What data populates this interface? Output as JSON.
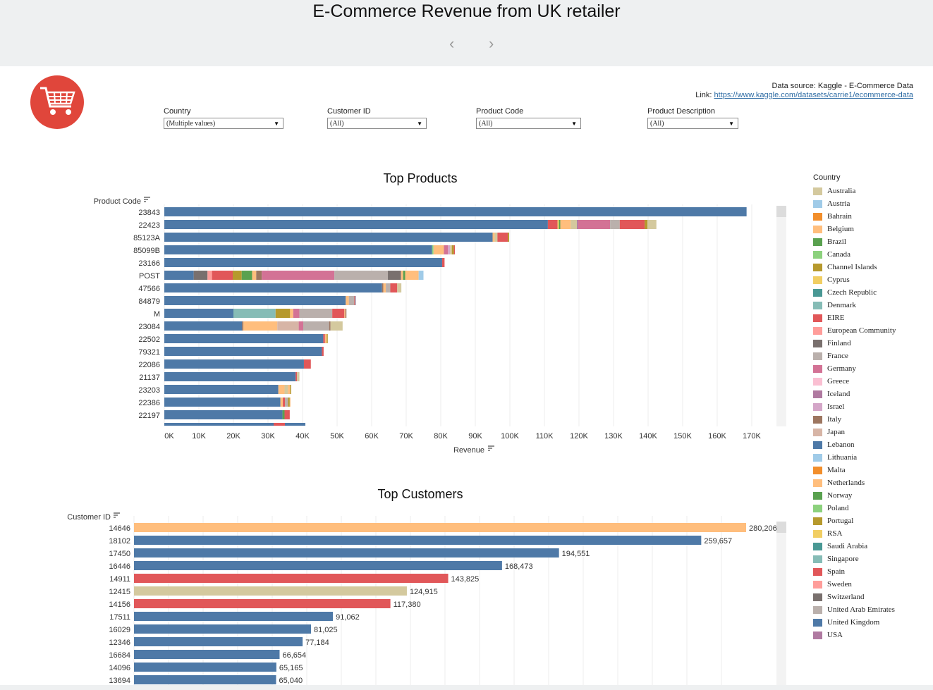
{
  "header": {
    "title": "E-Commerce Revenue from UK retailer",
    "prev_glyph": "‹",
    "next_glyph": "›"
  },
  "source": {
    "line1": "Data source: Kaggle - E-Commerce Data",
    "link_label": "Link: ",
    "link_text": "https://www.kaggle.com/datasets/carrie1/ecommerce-data"
  },
  "filters": [
    {
      "label": "Country",
      "value": "(Multiple values)"
    },
    {
      "label": "Customer ID",
      "value": "(All)"
    },
    {
      "label": "Product Code",
      "value": "(All)"
    },
    {
      "label": "Product Description",
      "value": "(All)"
    }
  ],
  "colors": {
    "Australia": "#d4c99e",
    "Austria": "#a0cbe8",
    "Bahrain": "#f28e2b",
    "Belgium": "#ffbe7d",
    "Brazil": "#59a14f",
    "Canada": "#8cd17d",
    "Channel Islands": "#b6992d",
    "Cyprus": "#f1ce63",
    "Czech Republic": "#499894",
    "Denmark": "#86bcb6",
    "EIRE": "#e15759",
    "European Community": "#ff9d9a",
    "Finland": "#79706e",
    "France": "#bab0ac",
    "Germany": "#d37295",
    "Greece": "#fabfd2",
    "Iceland": "#b07aa1",
    "Israel": "#d4a6c8",
    "Italy": "#9d7660",
    "Japan": "#d7b5a6",
    "Lebanon": "#4e79a7",
    "Lithuania": "#a0cbe8",
    "Malta": "#f28e2b",
    "Netherlands": "#ffbe7d",
    "Norway": "#59a14f",
    "Poland": "#8cd17d",
    "Portugal": "#b6992d",
    "RSA": "#f1ce63",
    "Saudi Arabia": "#499894",
    "Singapore": "#86bcb6",
    "Spain": "#e15759",
    "Sweden": "#ff9d9a",
    "Switzerland": "#79706e",
    "United Arab Emirates": "#bab0ac",
    "United Kingdom": "#4e79a7",
    "USA": "#b07aa1"
  },
  "legend": {
    "title": "Country",
    "items": [
      "Australia",
      "Austria",
      "Bahrain",
      "Belgium",
      "Brazil",
      "Canada",
      "Channel Islands",
      "Cyprus",
      "Czech Republic",
      "Denmark",
      "EIRE",
      "European Community",
      "Finland",
      "France",
      "Germany",
      "Greece",
      "Iceland",
      "Israel",
      "Italy",
      "Japan",
      "Lebanon",
      "Lithuania",
      "Malta",
      "Netherlands",
      "Norway",
      "Poland",
      "Portugal",
      "RSA",
      "Saudi Arabia",
      "Singapore",
      "Spain",
      "Sweden",
      "Switzerland",
      "United Arab Emirates",
      "United Kingdom",
      "USA"
    ]
  },
  "chart_data": [
    {
      "type": "bar",
      "orientation": "horizontal",
      "stacked": true,
      "title": "Top Products",
      "ylabel": "Product Code",
      "xlabel": "Revenue",
      "xlim": [
        0,
        170000
      ],
      "xticks": [
        "0K",
        "10K",
        "20K",
        "30K",
        "40K",
        "50K",
        "60K",
        "70K",
        "80K",
        "90K",
        "100K",
        "110K",
        "120K",
        "130K",
        "140K",
        "150K",
        "160K",
        "170K"
      ],
      "categories": [
        "23843",
        "22423",
        "85123A",
        "85099B",
        "23166",
        "POST",
        "47566",
        "84879",
        "M",
        "23084",
        "22502",
        "79321",
        "22086",
        "21137",
        "23203",
        "22386",
        "22197"
      ],
      "stacks": [
        [
          [
            "United Kingdom",
            168500
          ]
        ],
        [
          [
            "United Kingdom",
            111000
          ],
          [
            "Spain",
            2800
          ],
          [
            "Cyprus",
            400
          ],
          [
            "Brazil",
            400
          ],
          [
            "Netherlands",
            3000
          ],
          [
            "Australia",
            1800
          ],
          [
            "Iceland",
            400
          ],
          [
            "Germany",
            9200
          ],
          [
            "France",
            2800
          ],
          [
            "EIRE",
            7200
          ],
          [
            "Portugal",
            800
          ],
          [
            "Australia",
            2600
          ]
        ],
        [
          [
            "United Kingdom",
            95000
          ],
          [
            "Netherlands",
            600
          ],
          [
            "Australia",
            800
          ],
          [
            "EIRE",
            3000
          ],
          [
            "Portugal",
            400
          ]
        ],
        [
          [
            "United Kingdom",
            77500
          ],
          [
            "Canada",
            400
          ],
          [
            "Netherlands",
            3000
          ],
          [
            "Germany",
            1200
          ],
          [
            "Israel",
            600
          ],
          [
            "Australia",
            500
          ],
          [
            "Channel Islands",
            600
          ],
          [
            "Spain",
            300
          ]
        ],
        [
          [
            "United Kingdom",
            80400
          ],
          [
            "EIRE",
            700
          ]
        ],
        [
          [
            "United Kingdom",
            8500
          ],
          [
            "Switzerland",
            4000
          ],
          [
            "European Community",
            1300
          ],
          [
            "EIRE",
            6000
          ],
          [
            "Channel Islands",
            2600
          ],
          [
            "Brazil",
            3000
          ],
          [
            "Belgium",
            1200
          ],
          [
            "Italy",
            1600
          ],
          [
            "Germany",
            21000
          ],
          [
            "France",
            15500
          ],
          [
            "Switzerland",
            3800
          ],
          [
            "Netherlands",
            600
          ],
          [
            "Norway",
            600
          ],
          [
            "Netherlands",
            3900
          ],
          [
            "Austria",
            1400
          ]
        ],
        [
          [
            "United Kingdom",
            63000
          ],
          [
            "Italy",
            400
          ],
          [
            "Netherlands",
            700
          ],
          [
            "France",
            1300
          ],
          [
            "EIRE",
            2000
          ],
          [
            "Australia",
            1200
          ]
        ],
        [
          [
            "United Kingdom",
            52500
          ],
          [
            "Netherlands",
            900
          ],
          [
            "France",
            1600
          ],
          [
            "EIRE",
            300
          ],
          [
            "Austria",
            200
          ]
        ],
        [
          [
            "United Kingdom",
            20000
          ],
          [
            "Denmark",
            12200
          ],
          [
            "Portugal",
            4200
          ],
          [
            "Netherlands",
            900
          ],
          [
            "Germany",
            1800
          ],
          [
            "France",
            9500
          ],
          [
            "EIRE",
            3500
          ],
          [
            "Netherlands",
            300
          ],
          [
            "Italy",
            300
          ]
        ],
        [
          [
            "United Kingdom",
            22500
          ],
          [
            "Italy",
            400
          ],
          [
            "Netherlands",
            9800
          ],
          [
            "Japan",
            6200
          ],
          [
            "Germany",
            1300
          ],
          [
            "France",
            7500
          ],
          [
            "Italy",
            400
          ],
          [
            "Australia",
            3500
          ]
        ],
        [
          [
            "United Kingdom",
            46000
          ],
          [
            "EIRE",
            500
          ],
          [
            "Netherlands",
            500
          ],
          [
            "Portugal",
            300
          ]
        ],
        [
          [
            "United Kingdom",
            45600
          ],
          [
            "EIRE",
            500
          ]
        ],
        [
          [
            "United Kingdom",
            40400
          ],
          [
            "EIRE",
            2000
          ]
        ],
        [
          [
            "United Kingdom",
            38000
          ],
          [
            "EIRE",
            400
          ],
          [
            "Australia",
            700
          ]
        ],
        [
          [
            "United Kingdom",
            33000
          ],
          [
            "Netherlands",
            1800
          ],
          [
            "Australia",
            1000
          ],
          [
            "Belgium",
            600
          ],
          [
            "Portugal",
            300
          ]
        ],
        [
          [
            "United Kingdom",
            33600
          ],
          [
            "Netherlands",
            700
          ],
          [
            "Spain",
            600
          ],
          [
            "France",
            900
          ],
          [
            "Portugal",
            500
          ],
          [
            "Netherlands",
            200
          ]
        ],
        [
          [
            "United Kingdom",
            34200
          ],
          [
            "Norway",
            600
          ],
          [
            "EIRE",
            1500
          ]
        ]
      ]
    },
    {
      "type": "bar",
      "orientation": "horizontal",
      "title": "Top Customers",
      "ylabel": "Customer ID",
      "categories": [
        "14646",
        "18102",
        "17450",
        "16446",
        "14911",
        "12415",
        "14156",
        "17511",
        "16029",
        "12346",
        "16684",
        "14096",
        "13694"
      ],
      "values": [
        280206,
        259657,
        194551,
        168473,
        143825,
        124915,
        117380,
        91062,
        81025,
        77184,
        66654,
        65165,
        65040
      ],
      "labels": [
        "280,206",
        "259,657",
        "194,551",
        "168,473",
        "143,825",
        "124,915",
        "117,380",
        "91,062",
        "81,025",
        "77,184",
        "66,654",
        "65,165",
        "65,040"
      ],
      "countries": [
        "Netherlands",
        "United Kingdom",
        "United Kingdom",
        "United Kingdom",
        "EIRE",
        "Australia",
        "EIRE",
        "United Kingdom",
        "United Kingdom",
        "United Kingdom",
        "United Kingdom",
        "United Kingdom",
        "United Kingdom"
      ],
      "xlim": [
        0,
        280206
      ]
    }
  ]
}
